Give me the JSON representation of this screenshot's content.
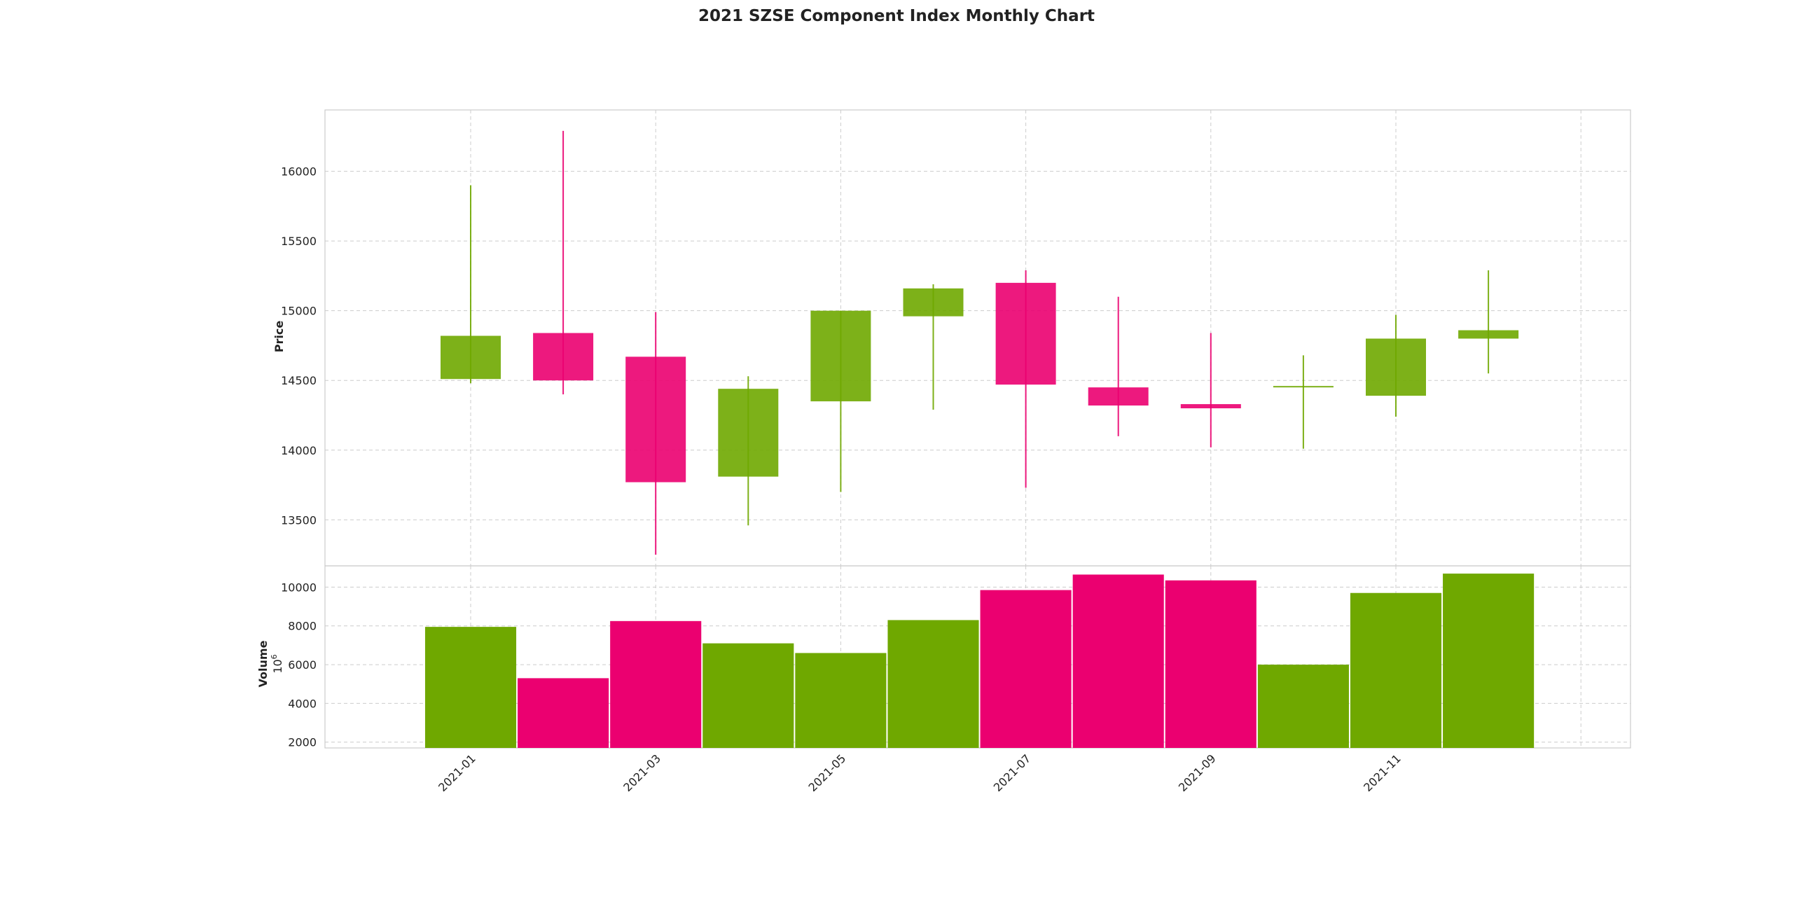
{
  "chart_data": {
    "type": "candlestick",
    "title": "2021 SZSE Component Index Monthly Chart",
    "ylabel": "Price",
    "volume_label": "Volume",
    "volume_unit_base": "10",
    "volume_unit_exp": "6",
    "grid": true,
    "colors": {
      "up": "#6fa800",
      "down": "#eb0070",
      "grid": "#cccccc",
      "frame": "#cccccc"
    },
    "price_ylim": [
      13170,
      16440
    ],
    "price_ticks": [
      13500,
      14000,
      14500,
      15000,
      15500,
      16000
    ],
    "volume_ylim": [
      1700,
      11100
    ],
    "volume_ticks": [
      2000,
      4000,
      6000,
      8000,
      10000
    ],
    "x_tick_labels": [
      "2021-01",
      "2021-03",
      "2021-05",
      "2021-07",
      "2021-09",
      "2021-11"
    ],
    "x_tick_month_index": [
      0,
      2,
      4,
      6,
      8,
      10
    ],
    "months": [
      "2021-01",
      "2021-02",
      "2021-03",
      "2021-04",
      "2021-05",
      "2021-06",
      "2021-07",
      "2021-08",
      "2021-09",
      "2021-10",
      "2021-11",
      "2021-12"
    ],
    "open": [
      14510,
      14840,
      14670,
      13810,
      14350,
      14960,
      15200,
      14450,
      14330,
      14450,
      14390,
      14800
    ],
    "high": [
      15900,
      16290,
      14990,
      14530,
      15000,
      15190,
      15290,
      15100,
      14840,
      14680,
      14970,
      15290
    ],
    "low": [
      14480,
      14400,
      13250,
      13460,
      13700,
      14290,
      13730,
      14100,
      14020,
      14010,
      14240,
      14550
    ],
    "close": [
      14820,
      14500,
      13770,
      14440,
      15000,
      15160,
      14470,
      14320,
      14300,
      14460,
      14800,
      14860
    ],
    "volume": [
      7950,
      5300,
      8250,
      7100,
      6600,
      8300,
      9850,
      10650,
      10350,
      6000,
      9700,
      10700
    ]
  }
}
